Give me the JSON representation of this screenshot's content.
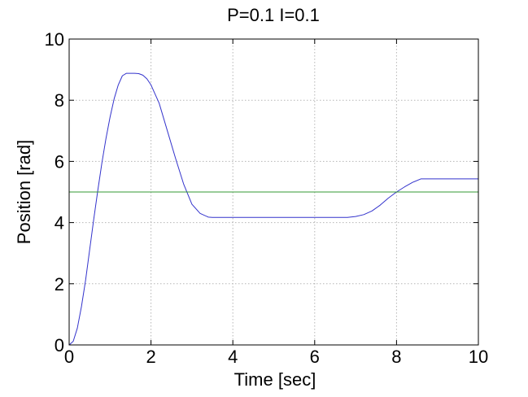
{
  "chart_data": {
    "type": "line",
    "title": "P=0.1 I=0.1",
    "xlabel": "Time [sec]",
    "ylabel": "Position [rad]",
    "xlim": [
      0,
      10
    ],
    "ylim": [
      0,
      10
    ],
    "xticks": [
      0,
      2,
      4,
      6,
      8,
      10
    ],
    "yticks": [
      0,
      2,
      4,
      6,
      8,
      10
    ],
    "xtick_labels": [
      "0",
      "2",
      "4",
      "6",
      "8",
      "10"
    ],
    "ytick_labels": [
      "0",
      "2",
      "4",
      "6",
      "8",
      "10"
    ],
    "grid": true,
    "series": [
      {
        "color": "#3333cc",
        "x": [
          0,
          0.1,
          0.2,
          0.3,
          0.4,
          0.5,
          0.6,
          0.7,
          0.8,
          0.9,
          1.0,
          1.1,
          1.2,
          1.3,
          1.4,
          1.5,
          1.6,
          1.7,
          1.8,
          1.9,
          2.0,
          2.2,
          2.4,
          2.6,
          2.8,
          3.0,
          3.2,
          3.4,
          3.5,
          3.6,
          4.0,
          5.0,
          6.0,
          6.8,
          7.0,
          7.2,
          7.4,
          7.6,
          7.8,
          8.0,
          8.2,
          8.4,
          8.6,
          8.7,
          9.0,
          10.0
        ],
        "y": [
          0,
          0.12,
          0.55,
          1.25,
          2.1,
          3.1,
          4.1,
          5.05,
          5.95,
          6.75,
          7.45,
          8.05,
          8.5,
          8.8,
          8.88,
          8.88,
          8.88,
          8.87,
          8.82,
          8.7,
          8.5,
          7.9,
          7.0,
          6.1,
          5.25,
          4.6,
          4.3,
          4.18,
          4.17,
          4.17,
          4.17,
          4.17,
          4.17,
          4.17,
          4.2,
          4.26,
          4.38,
          4.57,
          4.8,
          5.0,
          5.17,
          5.32,
          5.43,
          5.43,
          5.43,
          5.43
        ]
      },
      {
        "color": "#339933",
        "x": [
          0,
          10
        ],
        "y": [
          5,
          5
        ]
      }
    ]
  }
}
